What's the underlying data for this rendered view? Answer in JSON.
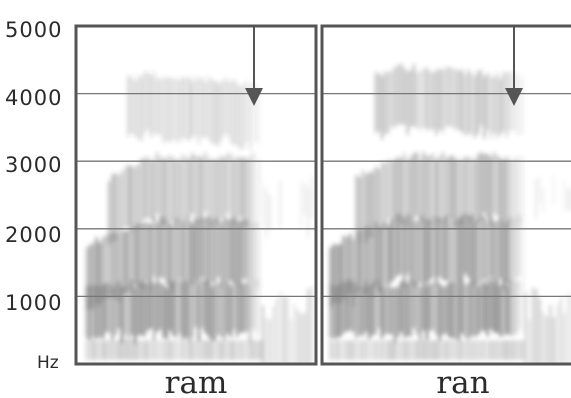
{
  "y_axis": {
    "unit": "Hz",
    "ticks": [
      5000,
      4000,
      3000,
      2000,
      1000
    ],
    "max_hz": 5000
  },
  "panels": [
    {
      "id": "ram",
      "label": "ram",
      "arrow_at_hz": 4000,
      "bands": [
        {
          "f_start": 1300,
          "f_mid": 1650,
          "f_end": 1650,
          "darkness": 0.85
        },
        {
          "f_start": 2100,
          "f_mid": 2600,
          "f_end": 2600,
          "darkness": 0.6
        },
        {
          "f_start": 3600,
          "f_mid": 3850,
          "f_end": 3700,
          "darkness": 0.35
        },
        {
          "f_start": 800,
          "f_mid": 800,
          "f_end": 820,
          "darkness": 0.95
        }
      ]
    },
    {
      "id": "ran",
      "label": "ran",
      "arrow_at_hz": 4000,
      "bands": [
        {
          "f_start": 1300,
          "f_mid": 1700,
          "f_end": 1680,
          "darkness": 0.9
        },
        {
          "f_start": 2100,
          "f_mid": 2600,
          "f_end": 2600,
          "darkness": 0.65
        },
        {
          "f_start": 3600,
          "f_mid": 3950,
          "f_end": 3800,
          "darkness": 0.5
        },
        {
          "f_start": 800,
          "f_mid": 800,
          "f_end": 820,
          "darkness": 0.95
        }
      ]
    }
  ],
  "colors": {
    "frame": "#555555",
    "grid": "#777777",
    "ink": "#2b2b2b",
    "arrow": "#555555"
  }
}
